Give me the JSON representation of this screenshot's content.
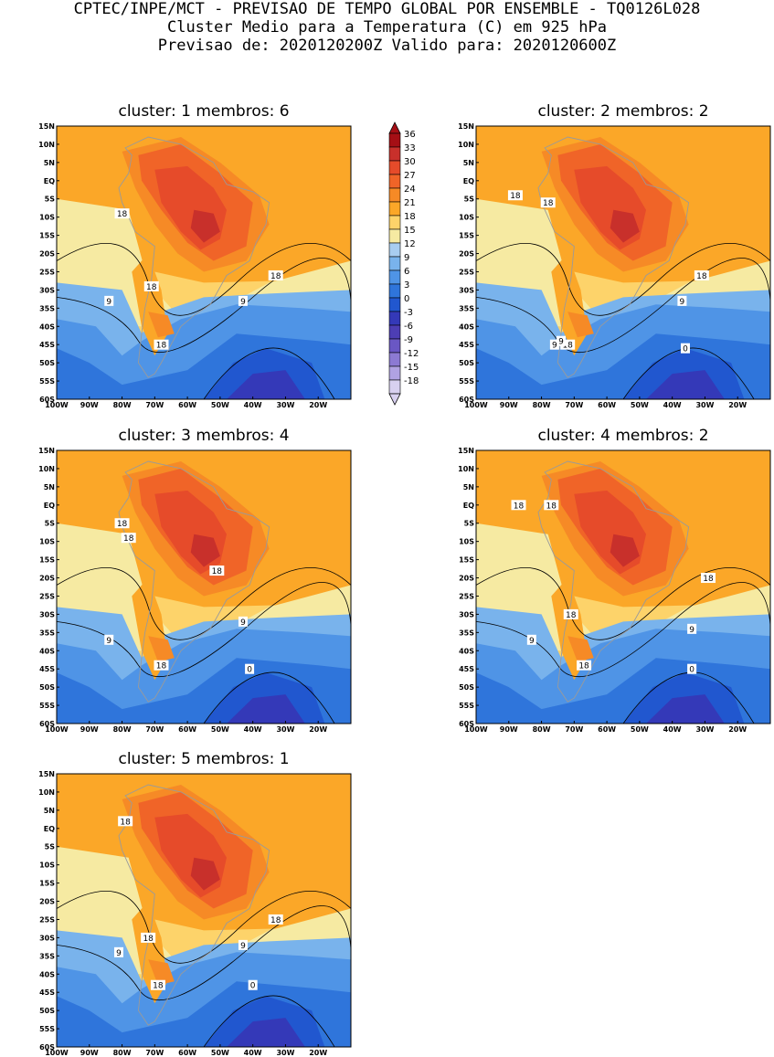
{
  "header": {
    "line1": "CPTEC/INPE/MCT - PREVISAO DE TEMPO GLOBAL POR ENSEMBLE - TQ0126L028",
    "line2": "Cluster Medio para a Temperatura (C) em 925 hPa",
    "line3": "Previsao de: 2020120200Z   Valido para: 2020120600Z"
  },
  "axes": {
    "lat_labels": [
      "15N",
      "10N",
      "5N",
      "EQ",
      "5S",
      "10S",
      "15S",
      "20S",
      "25S",
      "30S",
      "35S",
      "40S",
      "45S",
      "50S",
      "55S",
      "60S"
    ],
    "lon_labels": [
      "100W",
      "90W",
      "80W",
      "70W",
      "60W",
      "50W",
      "40W",
      "30W",
      "20W"
    ],
    "lon_range": [
      -100,
      -10
    ],
    "lat_range": [
      -60,
      15
    ]
  },
  "colorbar": {
    "levels": [
      "36",
      "33",
      "30",
      "27",
      "24",
      "21",
      "18",
      "15",
      "12",
      "9",
      "6",
      "3",
      "0",
      "-3",
      "-6",
      "-9",
      "-12",
      "-15",
      "-18"
    ],
    "colors": [
      "#a50f15",
      "#c8302b",
      "#e64b2a",
      "#f06428",
      "#f68a26",
      "#fba728",
      "#fdd36a",
      "#f6eaa2",
      "#a8cdf0",
      "#79b3ec",
      "#4f94e6",
      "#2f75db",
      "#2157cf",
      "#3439b8",
      "#4d3eb4",
      "#6a57c4",
      "#8c7ad3",
      "#b0a2e2",
      "#d8d0f0"
    ]
  },
  "panels": [
    {
      "title": "cluster: 1   membros: 6",
      "labels": [
        {
          "text": "18",
          "lon": -80,
          "lat": -9
        },
        {
          "text": "18",
          "lon": -71,
          "lat": -29
        },
        {
          "text": "18",
          "lon": -68,
          "lat": -45
        },
        {
          "text": "18",
          "lon": -33,
          "lat": -26
        },
        {
          "text": "9",
          "lon": -84,
          "lat": -33
        },
        {
          "text": "9",
          "lon": -43,
          "lat": -33
        }
      ]
    },
    {
      "title": "cluster: 2   membros: 2",
      "labels": [
        {
          "text": "18",
          "lon": -88,
          "lat": -4
        },
        {
          "text": "18",
          "lon": -78,
          "lat": -6
        },
        {
          "text": "18",
          "lon": -72,
          "lat": -45
        },
        {
          "text": "9",
          "lon": -74,
          "lat": -44
        },
        {
          "text": "9",
          "lon": -76,
          "lat": -45
        },
        {
          "text": "18",
          "lon": -31,
          "lat": -26
        },
        {
          "text": "9",
          "lon": -37,
          "lat": -33
        },
        {
          "text": "0",
          "lon": -36,
          "lat": -46
        }
      ]
    },
    {
      "title": "cluster: 3   membros: 4",
      "labels": [
        {
          "text": "18",
          "lon": -80,
          "lat": -5
        },
        {
          "text": "18",
          "lon": -78,
          "lat": -9
        },
        {
          "text": "18",
          "lon": -51,
          "lat": -18
        },
        {
          "text": "18",
          "lon": -68,
          "lat": -44
        },
        {
          "text": "9",
          "lon": -84,
          "lat": -37
        },
        {
          "text": "9",
          "lon": -43,
          "lat": -32
        },
        {
          "text": "0",
          "lon": -41,
          "lat": -45
        }
      ]
    },
    {
      "title": "cluster: 4   membros: 2",
      "labels": [
        {
          "text": "18",
          "lon": -87,
          "lat": 0
        },
        {
          "text": "18",
          "lon": -77,
          "lat": 0
        },
        {
          "text": "18",
          "lon": -71,
          "lat": -30
        },
        {
          "text": "18",
          "lon": -67,
          "lat": -44
        },
        {
          "text": "18",
          "lon": -29,
          "lat": -20
        },
        {
          "text": "9",
          "lon": -83,
          "lat": -37
        },
        {
          "text": "9",
          "lon": -34,
          "lat": -34
        },
        {
          "text": "0",
          "lon": -34,
          "lat": -45
        }
      ]
    },
    {
      "title": "cluster: 5   membros: 1",
      "labels": [
        {
          "text": "18",
          "lon": -79,
          "lat": 2
        },
        {
          "text": "18",
          "lon": -72,
          "lat": -30
        },
        {
          "text": "18",
          "lon": -69,
          "lat": -43
        },
        {
          "text": "18",
          "lon": -33,
          "lat": -25
        },
        {
          "text": "9",
          "lon": -81,
          "lat": -34
        },
        {
          "text": "9",
          "lon": -43,
          "lat": -32
        },
        {
          "text": "0",
          "lon": -40,
          "lat": -43
        }
      ]
    }
  ]
}
